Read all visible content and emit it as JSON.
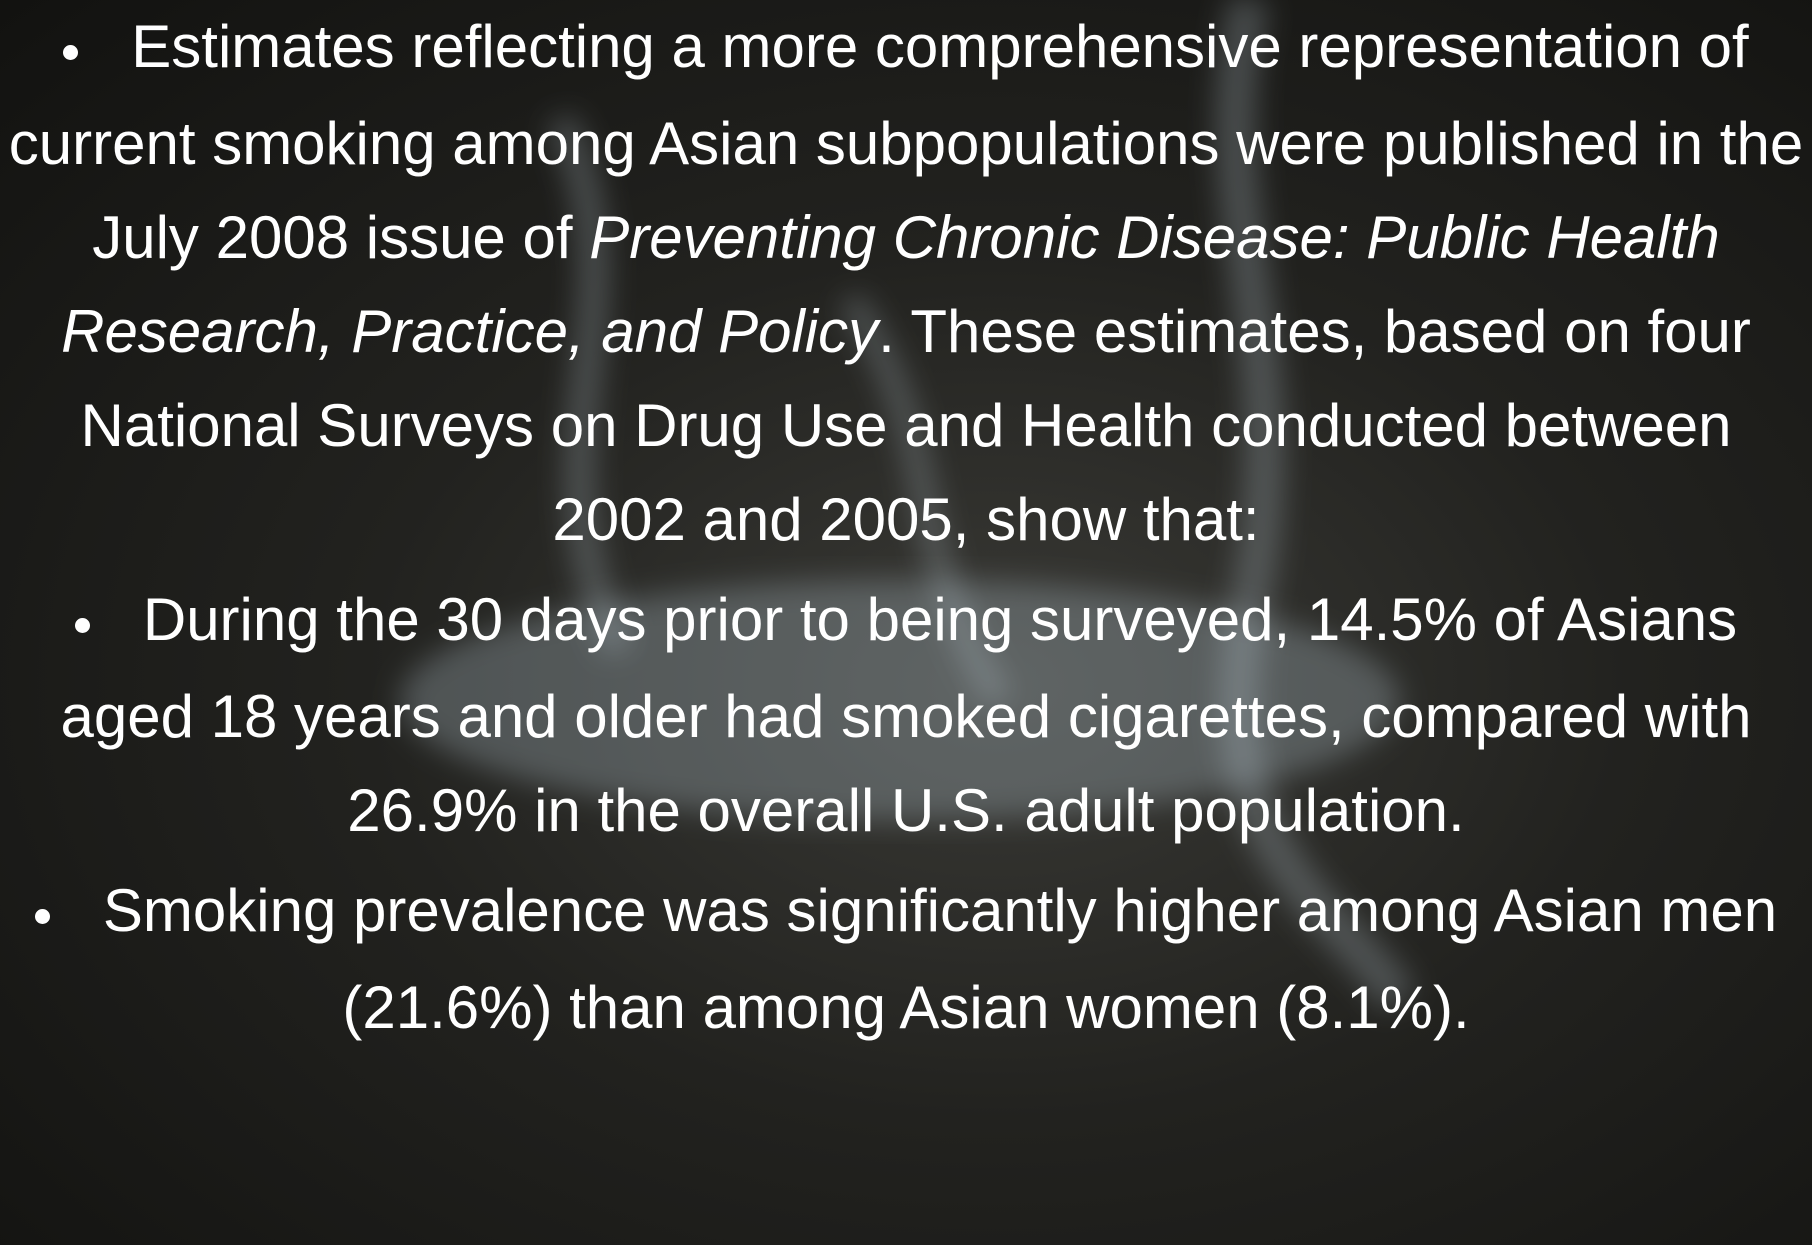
{
  "slide": {
    "bullets": [
      {
        "segments": [
          {
            "text": "Estimates reflecting a more comprehensive representation of current smoking among Asian subpopulations were published in the July 2008 issue of ",
            "italic": false
          },
          {
            "text": "Preventing Chronic Disease: Public Health Research, Practice, and Policy",
            "italic": true
          },
          {
            "text": ". These estimates, based on four National Surveys on Drug Use and Health conducted between 2002 and 2005, show that:",
            "italic": false
          }
        ]
      },
      {
        "segments": [
          {
            "text": "During the 30 days prior to being surveyed, 14.5% of Asians aged 18 years and older had smoked cigarettes, compared with 26.9% in the overall U.S. adult population.",
            "italic": false
          }
        ]
      },
      {
        "segments": [
          {
            "text": "Smoking prevalence was significantly higher among Asian men (21.6%) than among Asian women (8.1%).",
            "italic": false
          }
        ]
      }
    ]
  }
}
